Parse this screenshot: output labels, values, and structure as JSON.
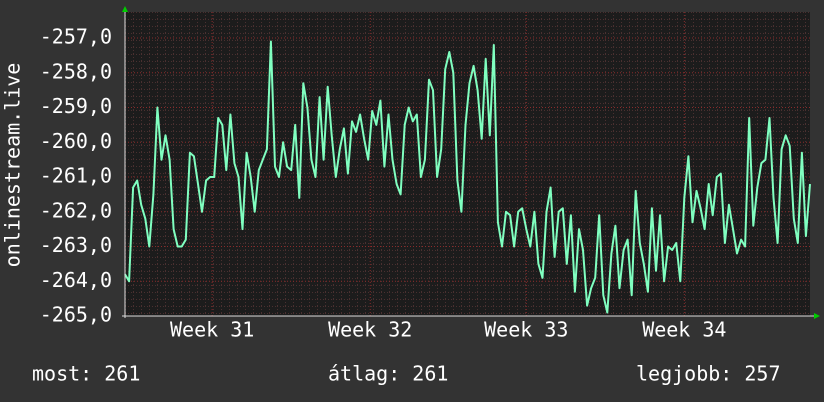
{
  "chart_data": {
    "type": "line",
    "ylabel": "onlinestream.live",
    "color": "#80ffc0",
    "values": [
      -263.8,
      -264,
      -261.3,
      -261.1,
      -261.8,
      -262.2,
      -263,
      -261.5,
      -259,
      -260.5,
      -259.8,
      -260.5,
      -262.5,
      -263,
      -263,
      -262.8,
      -260.3,
      -260.4,
      -261.2,
      -262,
      -261.1,
      -261,
      -261,
      -259.3,
      -259.5,
      -260.8,
      -259.2,
      -260.6,
      -261,
      -262.5,
      -260.3,
      -261,
      -262,
      -260.8,
      -260.5,
      -260.2,
      -257.1,
      -260.7,
      -261,
      -260,
      -260.7,
      -260.8,
      -259.5,
      -261.6,
      -258.3,
      -259,
      -260.5,
      -261,
      -258.7,
      -260.5,
      -258.4,
      -259.8,
      -261,
      -260.2,
      -259.6,
      -260.9,
      -259.4,
      -259.7,
      -259.2,
      -259.9,
      -260.5,
      -259.1,
      -259.5,
      -258.8,
      -260.7,
      -259.2,
      -260.5,
      -261.2,
      -261.5,
      -259.5,
      -259,
      -259.4,
      -259.2,
      -261,
      -260.5,
      -258.2,
      -258.5,
      -261,
      -260.2,
      -257.9,
      -257.4,
      -258,
      -261.1,
      -262,
      -259.5,
      -258.3,
      -257.8,
      -258.5,
      -259.9,
      -257.6,
      -259.8,
      -257.2,
      -262.3,
      -263,
      -262,
      -262.1,
      -263,
      -262,
      -261.9,
      -262.5,
      -263,
      -262,
      -263.5,
      -263.9,
      -262,
      -261.3,
      -263.3,
      -262,
      -261.9,
      -263.5,
      -262.1,
      -264.3,
      -262.5,
      -263.1,
      -264.7,
      -264.2,
      -263.9,
      -262.1,
      -264.4,
      -264.9,
      -263.2,
      -262.4,
      -264.2,
      -263.1,
      -262.8,
      -264.4,
      -261.4,
      -262.9,
      -263.5,
      -264.3,
      -261.9,
      -263.7,
      -262.1,
      -264,
      -263,
      -263.1,
      -262.9,
      -264,
      -261.6,
      -260.4,
      -262.3,
      -261.4,
      -261.9,
      -262.5,
      -261.2,
      -262.1,
      -261,
      -260.9,
      -262.9,
      -261.8,
      -262.5,
      -263.2,
      -262.8,
      -263,
      -259.3,
      -262.4,
      -261.3,
      -260.6,
      -260.5,
      -259.3,
      -261.6,
      -262.9,
      -260.2,
      -259.8,
      -260.1,
      -262.2,
      -262.9,
      -260.3,
      -262.7,
      -261.2
    ],
    "xlim": [
      0,
      169
    ],
    "xticks": [
      {
        "value": 21.5,
        "label": "Week 31"
      },
      {
        "value": 60.5,
        "label": "Week 32"
      },
      {
        "value": 99,
        "label": "Week 33"
      },
      {
        "value": 138,
        "label": "Week 34"
      }
    ],
    "ylim": [
      -265,
      -256.25
    ],
    "yticks": [
      {
        "value": -265,
        "label": "-265,0"
      },
      {
        "value": -264,
        "label": "-264,0"
      },
      {
        "value": -263,
        "label": "-263,0"
      },
      {
        "value": -262,
        "label": "-262,0"
      },
      {
        "value": -261,
        "label": "-261,0"
      },
      {
        "value": -260,
        "label": "-260,0"
      },
      {
        "value": -259,
        "label": "-259,0"
      },
      {
        "value": -258,
        "label": "-258,0"
      },
      {
        "value": -257,
        "label": "-257,0"
      }
    ],
    "grid": true,
    "summary": [
      "most: 261",
      "átlag: 261",
      "legjobb: 257"
    ]
  }
}
